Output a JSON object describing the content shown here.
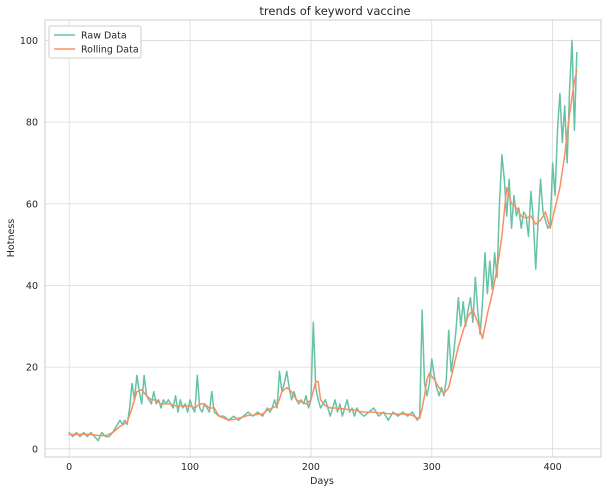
{
  "chart_data": {
    "type": "line",
    "title": "trends of keyword vaccine",
    "xlabel": "Days",
    "ylabel": "Hotness",
    "xlim": [
      -20,
      440
    ],
    "ylim": [
      -2,
      105
    ],
    "x_ticks": [
      0,
      100,
      200,
      300,
      400
    ],
    "y_ticks": [
      0,
      20,
      40,
      60,
      80,
      100
    ],
    "grid": true,
    "legend_position": "top-left",
    "colors": {
      "raw": "#66c2a5",
      "rolling": "#fc8d62",
      "grid": "#d9d9d9",
      "spine": "#cccccc"
    },
    "series": [
      {
        "name": "Raw Data",
        "key": "raw",
        "points": [
          [
            0,
            4
          ],
          [
            3,
            3
          ],
          [
            6,
            4
          ],
          [
            9,
            3
          ],
          [
            12,
            4
          ],
          [
            15,
            3
          ],
          [
            18,
            4
          ],
          [
            21,
            3
          ],
          [
            24,
            2
          ],
          [
            27,
            4
          ],
          [
            30,
            3
          ],
          [
            33,
            3
          ],
          [
            36,
            4
          ],
          [
            38,
            5
          ],
          [
            40,
            6
          ],
          [
            42,
            7
          ],
          [
            44,
            6
          ],
          [
            46,
            7
          ],
          [
            48,
            6
          ],
          [
            50,
            10
          ],
          [
            52,
            16
          ],
          [
            54,
            12
          ],
          [
            56,
            18
          ],
          [
            58,
            14
          ],
          [
            60,
            11
          ],
          [
            62,
            18
          ],
          [
            64,
            13
          ],
          [
            66,
            12
          ],
          [
            68,
            11
          ],
          [
            70,
            14
          ],
          [
            72,
            11
          ],
          [
            74,
            12
          ],
          [
            76,
            10
          ],
          [
            78,
            12
          ],
          [
            80,
            11
          ],
          [
            82,
            12
          ],
          [
            84,
            11
          ],
          [
            86,
            10
          ],
          [
            88,
            13
          ],
          [
            90,
            9
          ],
          [
            92,
            12
          ],
          [
            94,
            10
          ],
          [
            96,
            11
          ],
          [
            98,
            9
          ],
          [
            100,
            12
          ],
          [
            102,
            10
          ],
          [
            104,
            9
          ],
          [
            106,
            18
          ],
          [
            108,
            10
          ],
          [
            110,
            9
          ],
          [
            112,
            11
          ],
          [
            114,
            10
          ],
          [
            116,
            9
          ],
          [
            118,
            14
          ],
          [
            120,
            9
          ],
          [
            124,
            8
          ],
          [
            128,
            8
          ],
          [
            132,
            7
          ],
          [
            136,
            8
          ],
          [
            140,
            7
          ],
          [
            144,
            8
          ],
          [
            148,
            9
          ],
          [
            152,
            8
          ],
          [
            156,
            9
          ],
          [
            160,
            8
          ],
          [
            164,
            10
          ],
          [
            166,
            9
          ],
          [
            168,
            10
          ],
          [
            170,
            12
          ],
          [
            172,
            10
          ],
          [
            174,
            19
          ],
          [
            176,
            14
          ],
          [
            178,
            16
          ],
          [
            180,
            19
          ],
          [
            182,
            15
          ],
          [
            184,
            12
          ],
          [
            186,
            14
          ],
          [
            188,
            12
          ],
          [
            190,
            11
          ],
          [
            192,
            12
          ],
          [
            194,
            11
          ],
          [
            196,
            13
          ],
          [
            198,
            10
          ],
          [
            200,
            12
          ],
          [
            202,
            31
          ],
          [
            204,
            15
          ],
          [
            206,
            12
          ],
          [
            208,
            10
          ],
          [
            210,
            11
          ],
          [
            212,
            12
          ],
          [
            214,
            10
          ],
          [
            216,
            8
          ],
          [
            218,
            10
          ],
          [
            220,
            12
          ],
          [
            222,
            9
          ],
          [
            224,
            11
          ],
          [
            226,
            8
          ],
          [
            228,
            10
          ],
          [
            230,
            12
          ],
          [
            232,
            9
          ],
          [
            234,
            10
          ],
          [
            236,
            8
          ],
          [
            238,
            10
          ],
          [
            240,
            9
          ],
          [
            244,
            8
          ],
          [
            248,
            9
          ],
          [
            252,
            10
          ],
          [
            256,
            8
          ],
          [
            260,
            9
          ],
          [
            264,
            7
          ],
          [
            268,
            9
          ],
          [
            272,
            8
          ],
          [
            276,
            9
          ],
          [
            280,
            8
          ],
          [
            284,
            9
          ],
          [
            286,
            8
          ],
          [
            288,
            7
          ],
          [
            290,
            8
          ],
          [
            292,
            34
          ],
          [
            294,
            16
          ],
          [
            296,
            13
          ],
          [
            298,
            16
          ],
          [
            300,
            22
          ],
          [
            302,
            18
          ],
          [
            304,
            15
          ],
          [
            306,
            13
          ],
          [
            308,
            15
          ],
          [
            310,
            13
          ],
          [
            312,
            17
          ],
          [
            314,
            29
          ],
          [
            316,
            19
          ],
          [
            318,
            23
          ],
          [
            320,
            29
          ],
          [
            322,
            37
          ],
          [
            324,
            30
          ],
          [
            326,
            36
          ],
          [
            328,
            30
          ],
          [
            330,
            34
          ],
          [
            332,
            37
          ],
          [
            334,
            31
          ],
          [
            336,
            42
          ],
          [
            338,
            34
          ],
          [
            340,
            28
          ],
          [
            342,
            36
          ],
          [
            344,
            48
          ],
          [
            346,
            38
          ],
          [
            348,
            46
          ],
          [
            350,
            39
          ],
          [
            352,
            48
          ],
          [
            354,
            42
          ],
          [
            356,
            60
          ],
          [
            358,
            72
          ],
          [
            360,
            66
          ],
          [
            362,
            57
          ],
          [
            364,
            66
          ],
          [
            366,
            54
          ],
          [
            368,
            62
          ],
          [
            370,
            57
          ],
          [
            372,
            59
          ],
          [
            374,
            54
          ],
          [
            376,
            58
          ],
          [
            378,
            57
          ],
          [
            380,
            52
          ],
          [
            382,
            63
          ],
          [
            384,
            56
          ],
          [
            386,
            44
          ],
          [
            388,
            56
          ],
          [
            390,
            66
          ],
          [
            392,
            58
          ],
          [
            394,
            56
          ],
          [
            396,
            54
          ],
          [
            398,
            55
          ],
          [
            400,
            70
          ],
          [
            402,
            62
          ],
          [
            404,
            78
          ],
          [
            406,
            87
          ],
          [
            408,
            75
          ],
          [
            410,
            84
          ],
          [
            412,
            70
          ],
          [
            414,
            88
          ],
          [
            416,
            100
          ],
          [
            418,
            78
          ],
          [
            420,
            97
          ]
        ]
      },
      {
        "name": "Rolling Data",
        "key": "rolling",
        "points": [
          [
            0,
            3.5
          ],
          [
            6,
            3.5
          ],
          [
            12,
            3.6
          ],
          [
            18,
            3.5
          ],
          [
            24,
            3.3
          ],
          [
            30,
            3.2
          ],
          [
            36,
            4.0
          ],
          [
            42,
            5.5
          ],
          [
            48,
            6.5
          ],
          [
            52,
            10
          ],
          [
            56,
            14
          ],
          [
            60,
            14.5
          ],
          [
            64,
            13
          ],
          [
            68,
            12
          ],
          [
            72,
            12
          ],
          [
            76,
            11
          ],
          [
            80,
            11
          ],
          [
            84,
            11
          ],
          [
            88,
            10.5
          ],
          [
            92,
            10.5
          ],
          [
            96,
            10.5
          ],
          [
            100,
            10.5
          ],
          [
            104,
            10
          ],
          [
            108,
            11
          ],
          [
            112,
            11
          ],
          [
            116,
            10
          ],
          [
            120,
            10
          ],
          [
            124,
            8
          ],
          [
            128,
            7.5
          ],
          [
            132,
            7
          ],
          [
            136,
            7.2
          ],
          [
            140,
            7.5
          ],
          [
            144,
            7.8
          ],
          [
            148,
            8.2
          ],
          [
            152,
            8.2
          ],
          [
            156,
            8.5
          ],
          [
            160,
            8.5
          ],
          [
            164,
            9.5
          ],
          [
            168,
            10
          ],
          [
            172,
            10.5
          ],
          [
            176,
            14
          ],
          [
            180,
            15
          ],
          [
            184,
            14
          ],
          [
            188,
            12
          ],
          [
            192,
            11.5
          ],
          [
            196,
            11
          ],
          [
            200,
            12
          ],
          [
            204,
            16.5
          ],
          [
            206,
            16.5
          ],
          [
            208,
            12
          ],
          [
            212,
            10.5
          ],
          [
            216,
            10
          ],
          [
            220,
            10
          ],
          [
            224,
            9.8
          ],
          [
            228,
            9.8
          ],
          [
            232,
            9.5
          ],
          [
            236,
            9.5
          ],
          [
            240,
            9.2
          ],
          [
            244,
            9
          ],
          [
            248,
            9
          ],
          [
            252,
            9
          ],
          [
            256,
            8.8
          ],
          [
            260,
            8.8
          ],
          [
            264,
            8.6
          ],
          [
            268,
            8.6
          ],
          [
            272,
            8.5
          ],
          [
            276,
            8.5
          ],
          [
            280,
            8.5
          ],
          [
            284,
            8.2
          ],
          [
            288,
            7.5
          ],
          [
            290,
            7.5
          ],
          [
            292,
            10
          ],
          [
            294,
            13
          ],
          [
            296,
            17
          ],
          [
            298,
            18.5
          ],
          [
            302,
            17
          ],
          [
            306,
            15
          ],
          [
            310,
            13.5
          ],
          [
            314,
            15
          ],
          [
            318,
            20
          ],
          [
            322,
            25
          ],
          [
            326,
            29
          ],
          [
            330,
            32.5
          ],
          [
            334,
            34
          ],
          [
            338,
            31
          ],
          [
            342,
            27
          ],
          [
            346,
            33
          ],
          [
            350,
            38
          ],
          [
            354,
            44
          ],
          [
            358,
            52
          ],
          [
            362,
            64
          ],
          [
            366,
            60
          ],
          [
            370,
            59
          ],
          [
            374,
            57
          ],
          [
            378,
            56.5
          ],
          [
            382,
            57
          ],
          [
            386,
            55
          ],
          [
            390,
            56
          ],
          [
            394,
            58
          ],
          [
            398,
            54
          ],
          [
            402,
            59
          ],
          [
            406,
            64
          ],
          [
            410,
            72
          ],
          [
            414,
            82
          ],
          [
            418,
            90
          ],
          [
            420,
            92.5
          ]
        ]
      }
    ]
  }
}
